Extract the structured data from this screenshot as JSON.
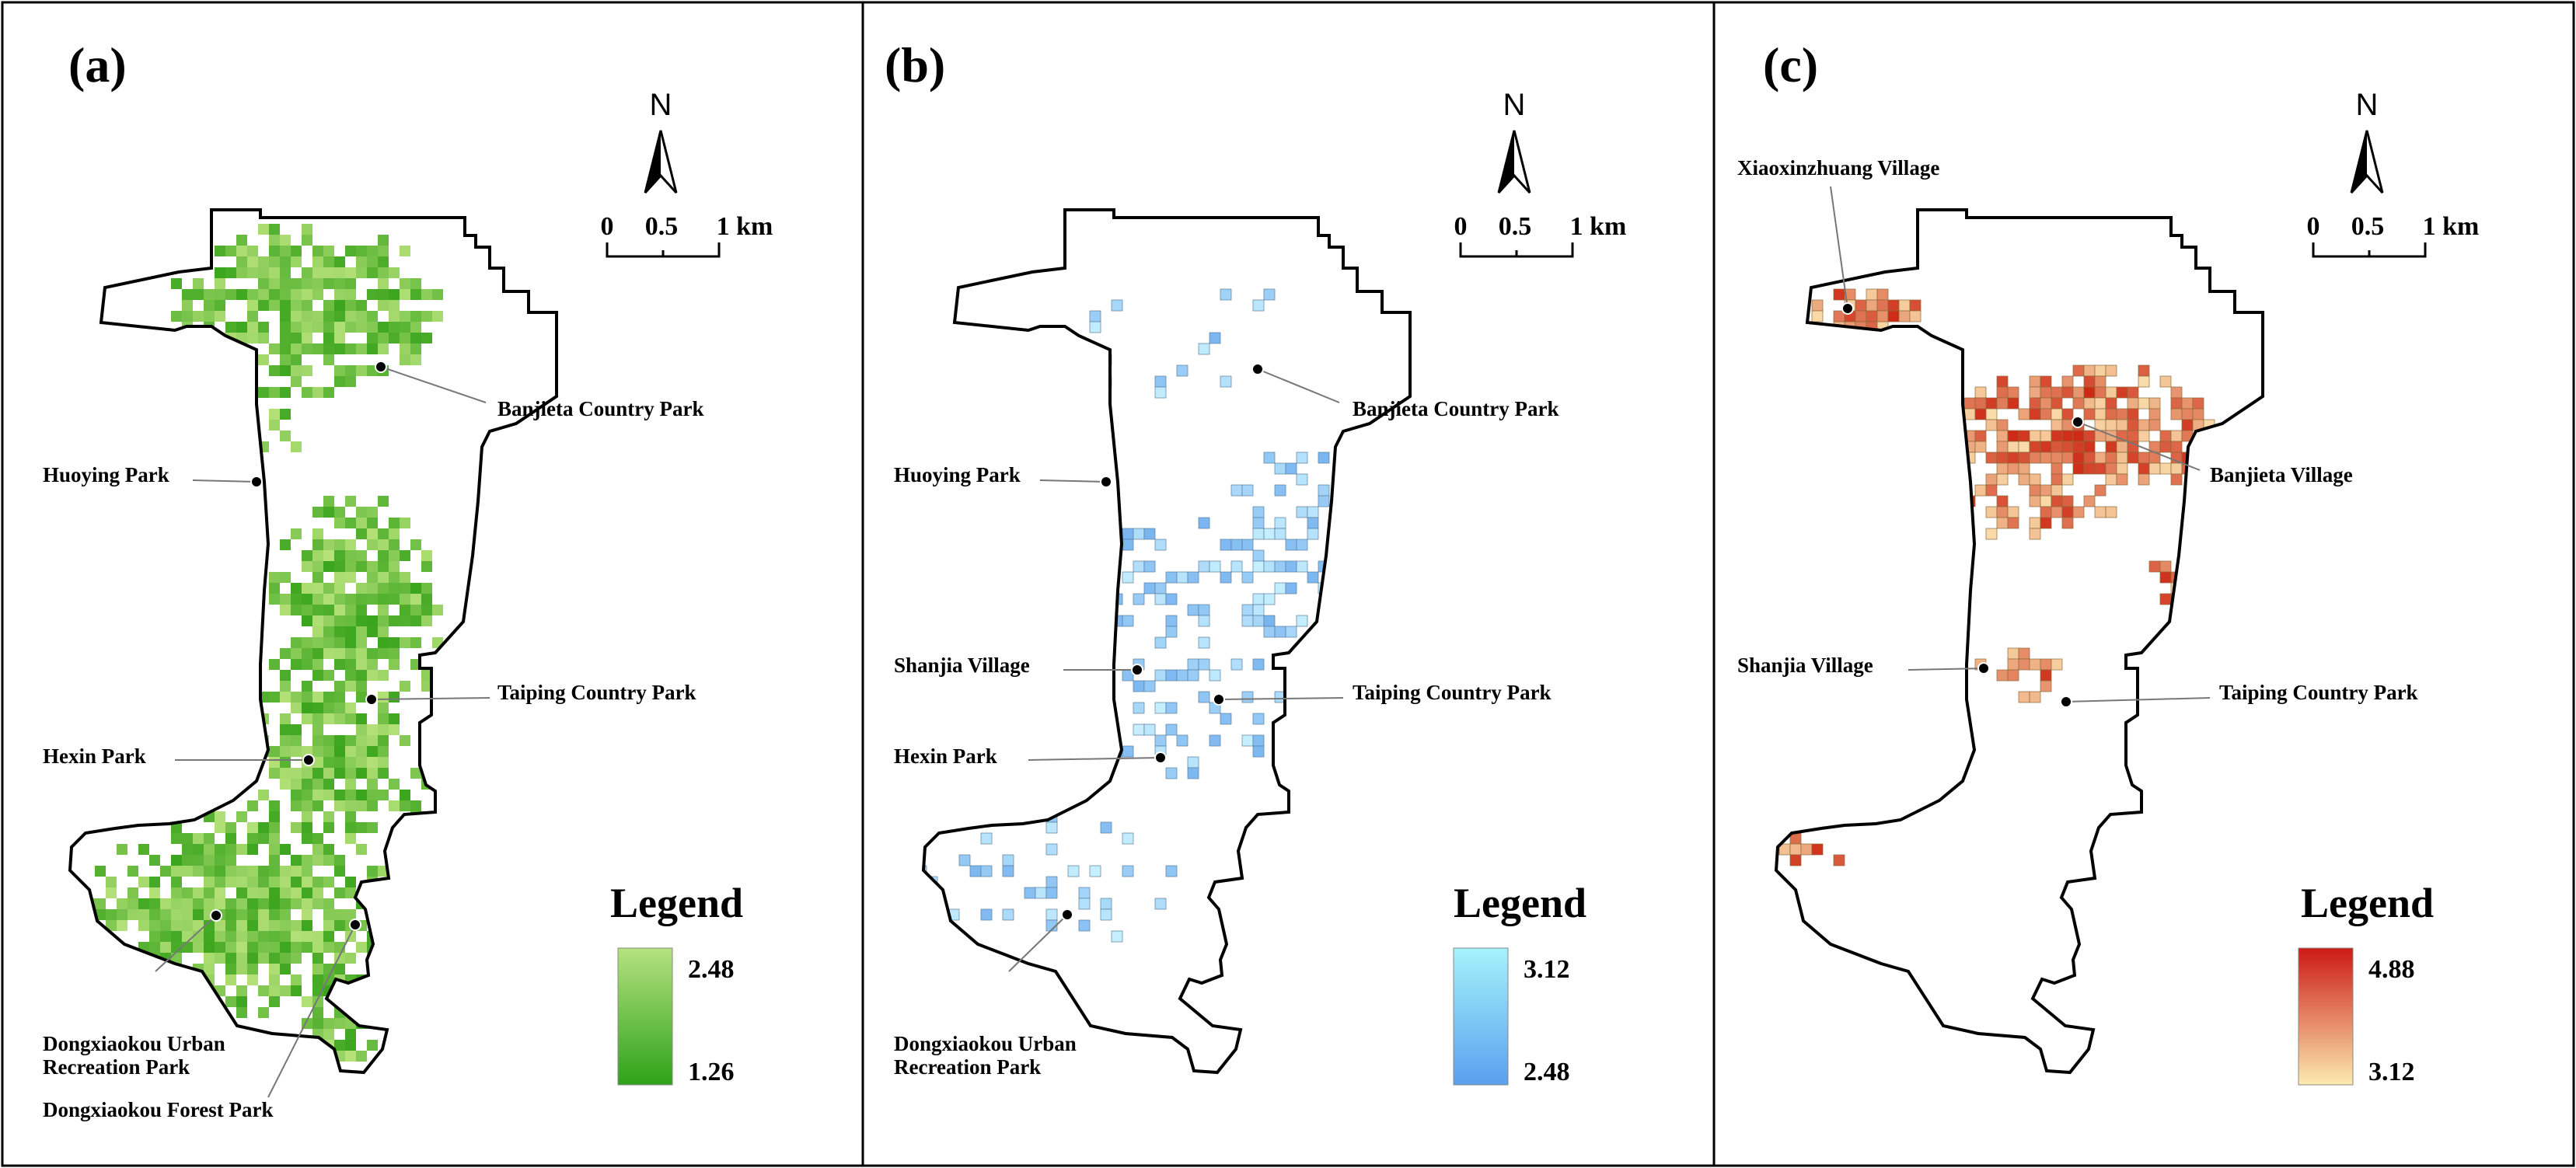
{
  "figure": {
    "panels": [
      {
        "id": "a",
        "label": "(a)",
        "scheme": "green",
        "legend": {
          "title": "Legend",
          "max": "2.48",
          "min": "1.26",
          "color_max": "#b4e27f",
          "color_min": "#2fa21a"
        },
        "places": [
          {
            "name": "Banjieta Country Park"
          },
          {
            "name": "Huoying Park"
          },
          {
            "name": "Taiping Country Park"
          },
          {
            "name": "Hexin Park"
          },
          {
            "name": "Dongxiaokou Urban Recreation Park"
          },
          {
            "name": "Dongxiaokou Forest Park"
          }
        ]
      },
      {
        "id": "b",
        "label": "(b)",
        "scheme": "blue",
        "legend": {
          "title": "Legend",
          "max": "3.12",
          "min": "2.48",
          "color_max": "#a6f2fb",
          "color_min": "#5aa0ef"
        },
        "places": [
          {
            "name": "Banjieta Country Park"
          },
          {
            "name": "Huoying Park"
          },
          {
            "name": "Shanjia Village"
          },
          {
            "name": "Taiping Country Park"
          },
          {
            "name": "Hexin Park"
          },
          {
            "name": "Dongxiaokou Urban Recreation Park"
          }
        ]
      },
      {
        "id": "c",
        "label": "(c)",
        "scheme": "red",
        "legend": {
          "title": "Legend",
          "max": "4.88",
          "min": "3.12",
          "color_max": "#cc1a14",
          "color_min": "#fcebae"
        },
        "places": [
          {
            "name": "Xiaoxinzhuang Village"
          },
          {
            "name": "Banjieta Village"
          },
          {
            "name": "Shanjia Village"
          },
          {
            "name": "Taiping Country Park"
          }
        ]
      }
    ],
    "north_label": "N",
    "scale_labels": [
      "0",
      "0.5",
      "1 km"
    ]
  }
}
